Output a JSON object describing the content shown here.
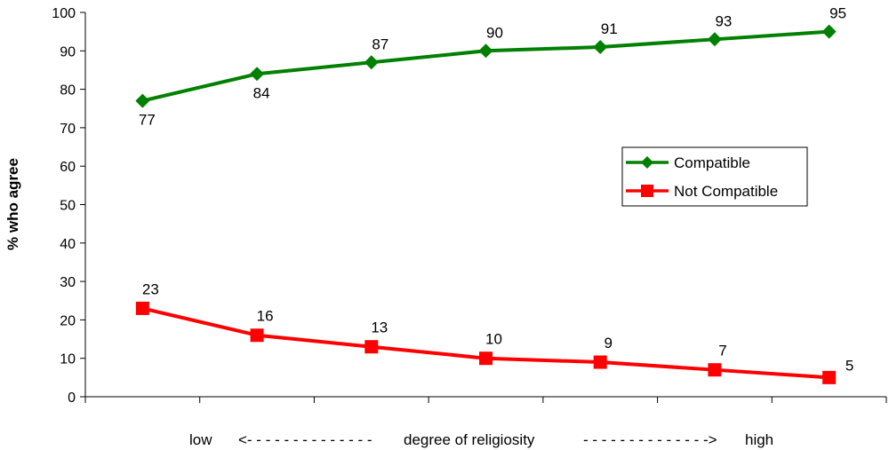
{
  "chart_data": {
    "type": "line",
    "x": [
      1,
      2,
      3,
      4,
      5,
      6,
      7
    ],
    "series": [
      {
        "name": "Compatible",
        "values": [
          77,
          84,
          87,
          90,
          91,
          93,
          95
        ],
        "color": "#008000",
        "marker": "diamond"
      },
      {
        "name": "Not Compatible",
        "values": [
          23,
          16,
          13,
          10,
          9,
          7,
          5
        ],
        "color": "#ff0000",
        "marker": "square"
      }
    ],
    "ylabel": "% who agree",
    "xlabel": {
      "low": "low",
      "left_arrow": "<- - - - - - - - - - - - - -",
      "center": "degree of religiosity",
      "right_arrow": "- - - - - - - - - - - - - ->",
      "high": "high"
    },
    "ylim": [
      0,
      100
    ],
    "yticks": [
      0,
      10,
      20,
      30,
      40,
      50,
      60,
      70,
      80,
      90,
      100
    ],
    "grid": false,
    "legend_position": "right"
  }
}
